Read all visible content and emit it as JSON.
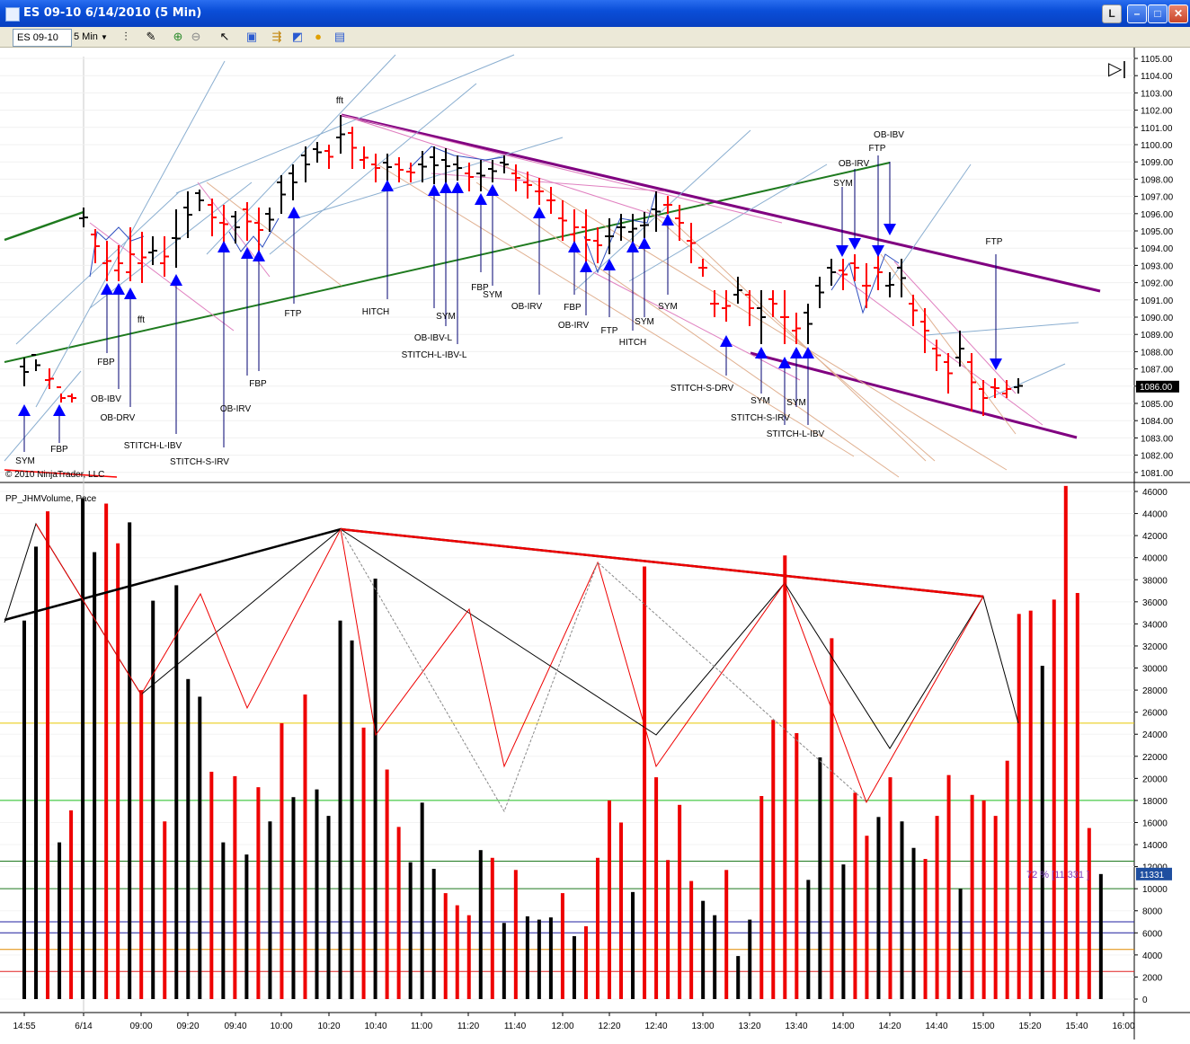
{
  "window": {
    "title": "ES 09-10  6/14/2010 (5 Min)",
    "buttons": {
      "l": "L",
      "min": "–",
      "max": "□",
      "close": "✕"
    }
  },
  "toolbar": {
    "instrument": "ES 09-10",
    "interval": "5 Min"
  },
  "price_panel": {
    "copyright": "© 2010 NinjaTrader, LLC",
    "last_price": "1086.00",
    "y_ticks": [
      "1105.00",
      "1104.00",
      "1103.00",
      "1102.00",
      "1101.00",
      "1100.00",
      "1099.00",
      "1098.00",
      "1097.00",
      "1096.00",
      "1095.00",
      "1094.00",
      "1093.00",
      "1092.00",
      "1091.00",
      "1090.00",
      "1089.00",
      "1088.00",
      "1087.00",
      "1086.00",
      "1085.00",
      "1084.00",
      "1083.00",
      "1082.00",
      "1081.00"
    ],
    "annotations": [
      "SYM",
      "FBP",
      "FBP",
      "OB-IBV",
      "OB-DRV",
      "fft",
      "STITCH-L-IBV",
      "STITCH-S-IRV",
      "OB-IRV",
      "FBP",
      "FTP",
      "fft",
      "HITCH",
      "OB-IBV-L",
      "SYM",
      "STITCH-L-IBV-L",
      "FBP",
      "SYM",
      "OB-IRV",
      "FBP",
      "OB-IRV",
      "FTP",
      "HITCH",
      "SYM",
      "SYM",
      "STITCH-S-DRV",
      "SYM",
      "STITCH-S-IRV",
      "SYM",
      "STITCH-L-IBV",
      "SYM",
      "OB-IRV",
      "FTP",
      "OB-IBV",
      "FTP"
    ]
  },
  "volume_panel": {
    "title": "PP_JHMVolume, Pace",
    "pace_label": "72 % [11 331 ]",
    "last_value": "11331",
    "y_ticks": [
      "46000",
      "44000",
      "42000",
      "40000",
      "38000",
      "36000",
      "34000",
      "32000",
      "30000",
      "28000",
      "26000",
      "24000",
      "22000",
      "20000",
      "18000",
      "16000",
      "14000",
      "12000",
      "10000",
      "8000",
      "6000",
      "4000",
      "2000",
      "0"
    ]
  },
  "x_axis": [
    "14:55",
    "6/14",
    "09:00",
    "09:20",
    "09:40",
    "10:00",
    "10:20",
    "10:40",
    "11:00",
    "11:20",
    "11:40",
    "12:00",
    "12:20",
    "12:40",
    "13:00",
    "13:20",
    "13:40",
    "14:00",
    "14:20",
    "14:40",
    "15:00",
    "15:20",
    "15:40",
    "16:00"
  ],
  "chart_data": {
    "type": "bar",
    "series": [
      {
        "name": "PP_JHMVolume, Pace",
        "values": [
          34300,
          41000,
          44200,
          14200,
          17100,
          45400,
          40500,
          44900,
          41300,
          43200,
          28000,
          36100,
          16100,
          37500,
          29000,
          27400,
          20600,
          14200,
          20200,
          13100,
          19200,
          16100,
          25000,
          18300,
          27600,
          19000,
          16600,
          34300,
          32500,
          24600,
          38100,
          20800,
          15600,
          12400,
          17800,
          11800,
          9600,
          8500,
          7600,
          13500,
          12800,
          6900,
          11700,
          7500,
          7200,
          7400,
          9600,
          5700,
          6600,
          12800,
          18000,
          16000,
          9700,
          39200,
          20100,
          12600,
          17600,
          10700,
          8900,
          7600,
          11700,
          3900,
          7200,
          18400,
          25300,
          40200,
          24100,
          10800,
          21900,
          32700,
          12200,
          18700,
          14800,
          16500,
          20100,
          16100,
          13700,
          12700,
          16600,
          20300,
          10000,
          18500,
          18000,
          16600,
          21600,
          34900,
          35200,
          30200,
          36200,
          46500,
          36800,
          15500,
          11331
        ],
        "colors": [
          "k",
          "k",
          "r",
          "k",
          "r",
          "k",
          "k",
          "r",
          "r",
          "k",
          "r",
          "k",
          "r",
          "k",
          "k",
          "k",
          "r",
          "k",
          "r",
          "k",
          "r",
          "k",
          "r",
          "k",
          "r",
          "k",
          "k",
          "k",
          "k",
          "r",
          "k",
          "r",
          "r",
          "k",
          "k",
          "k",
          "r",
          "r",
          "r",
          "k",
          "r",
          "k",
          "r",
          "k",
          "k",
          "k",
          "r",
          "k",
          "r",
          "r",
          "r",
          "r",
          "k",
          "r",
          "r",
          "r",
          "r",
          "r",
          "k",
          "k",
          "r",
          "k",
          "k",
          "r",
          "r",
          "r",
          "r",
          "k",
          "k",
          "r",
          "k",
          "r",
          "r",
          "k",
          "r",
          "k",
          "k",
          "r",
          "r",
          "r",
          "k",
          "r",
          "r",
          "r",
          "r",
          "r",
          "r",
          "k",
          "r",
          "r",
          "r",
          "r",
          "k"
        ]
      }
    ],
    "ylim": [
      0,
      46000
    ],
    "reference_lines": [
      25000,
      18000,
      12500,
      10000,
      7000,
      6000,
      4500,
      2500
    ]
  },
  "colors": {
    "up_bar": "#000000",
    "down_bar": "#ff0000",
    "trend_green": "#1e7a1e",
    "channel_purple": "#800080",
    "marker_blue": "#0000ff"
  }
}
